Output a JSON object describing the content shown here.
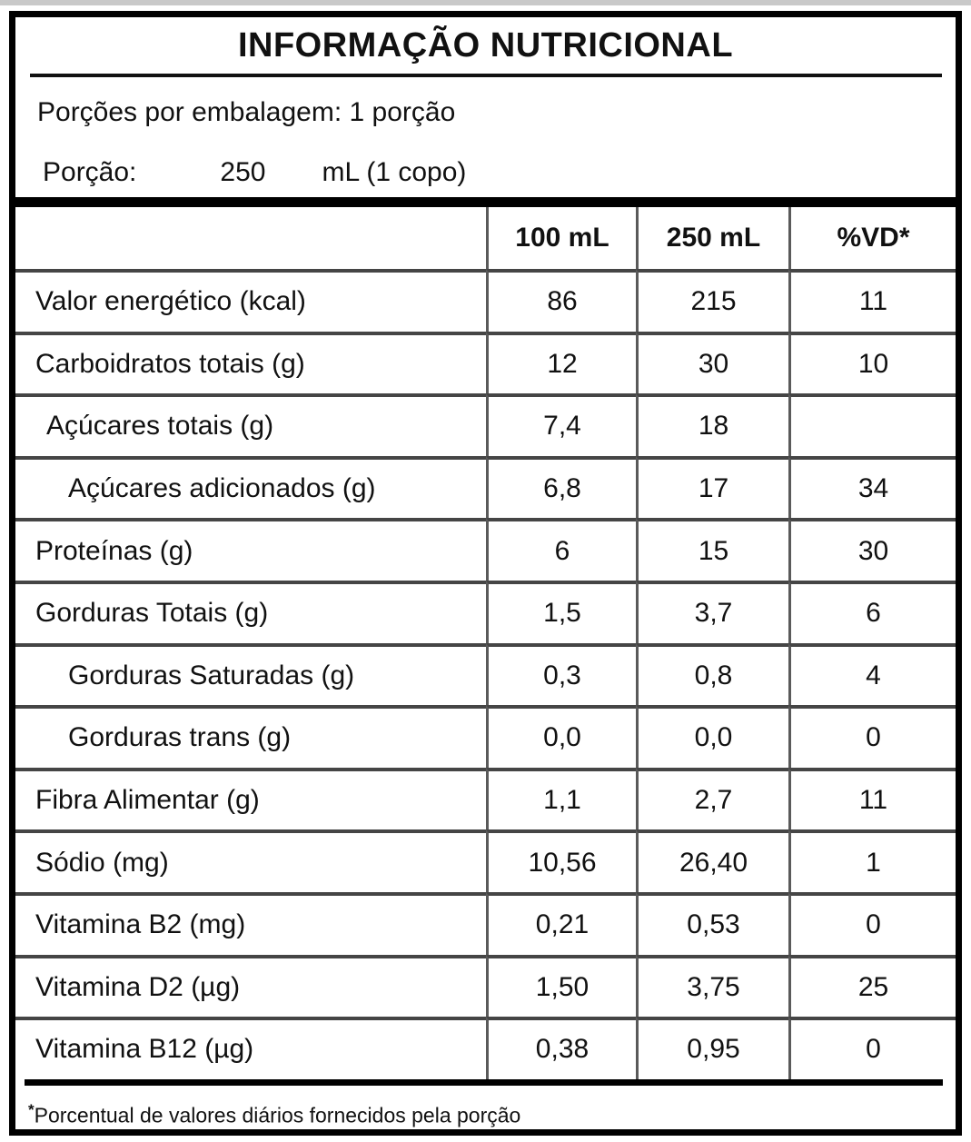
{
  "colors": {
    "frame_border": "#000000",
    "grid_separator": "#454545",
    "column_divider": "#5a5a5a",
    "top_strip": "#c9c9c9"
  },
  "title": "INFORMAÇÃO NUTRICIONAL",
  "servings_line": "Porções por embalagem: 1 porção",
  "serving": {
    "label": "Porção:",
    "amount": "250",
    "unit": "mL (1 copo)"
  },
  "table": {
    "columns": [
      "",
      "100 mL",
      "250 mL",
      "%VD*"
    ],
    "rows": [
      {
        "label": "Valor energético (kcal)",
        "per100": "86",
        "per250": "215",
        "vd": "11"
      },
      {
        "label": "Carboidratos totais (g)",
        "per100": "12",
        "per250": "30",
        "vd": "10"
      },
      {
        "label": "Açúcares totais (g)",
        "per100": "7,4",
        "per250": "18",
        "vd": ""
      },
      {
        "label": "Açúcares adicionados (g)",
        "per100": "6,8",
        "per250": "17",
        "vd": "34"
      },
      {
        "label": "Proteínas (g)",
        "per100": "6",
        "per250": "15",
        "vd": "30"
      },
      {
        "label": "Gorduras Totais (g)",
        "per100": "1,5",
        "per250": "3,7",
        "vd": "6"
      },
      {
        "label": "Gorduras Saturadas (g)",
        "per100": "0,3",
        "per250": "0,8",
        "vd": "4"
      },
      {
        "label": "Gorduras trans (g)",
        "per100": "0,0",
        "per250": "0,0",
        "vd": "0"
      },
      {
        "label": "Fibra Alimentar (g)",
        "per100": "1,1",
        "per250": "2,7",
        "vd": "11"
      },
      {
        "label": "Sódio (mg)",
        "per100": "10,56",
        "per250": "26,40",
        "vd": "1"
      },
      {
        "label": "Vitamina B2 (mg)",
        "per100": "0,21",
        "per250": "0,53",
        "vd": "0"
      },
      {
        "label": "Vitamina D2 (µg)",
        "per100": "1,50",
        "per250": "3,75",
        "vd": "25"
      },
      {
        "label": "Vitamina B12 (µg)",
        "per100": "0,38",
        "per250": "0,95",
        "vd": "0"
      }
    ]
  },
  "footnote": {
    "marker": "*",
    "text": "Porcentual de valores diários fornecidos pela porção"
  }
}
